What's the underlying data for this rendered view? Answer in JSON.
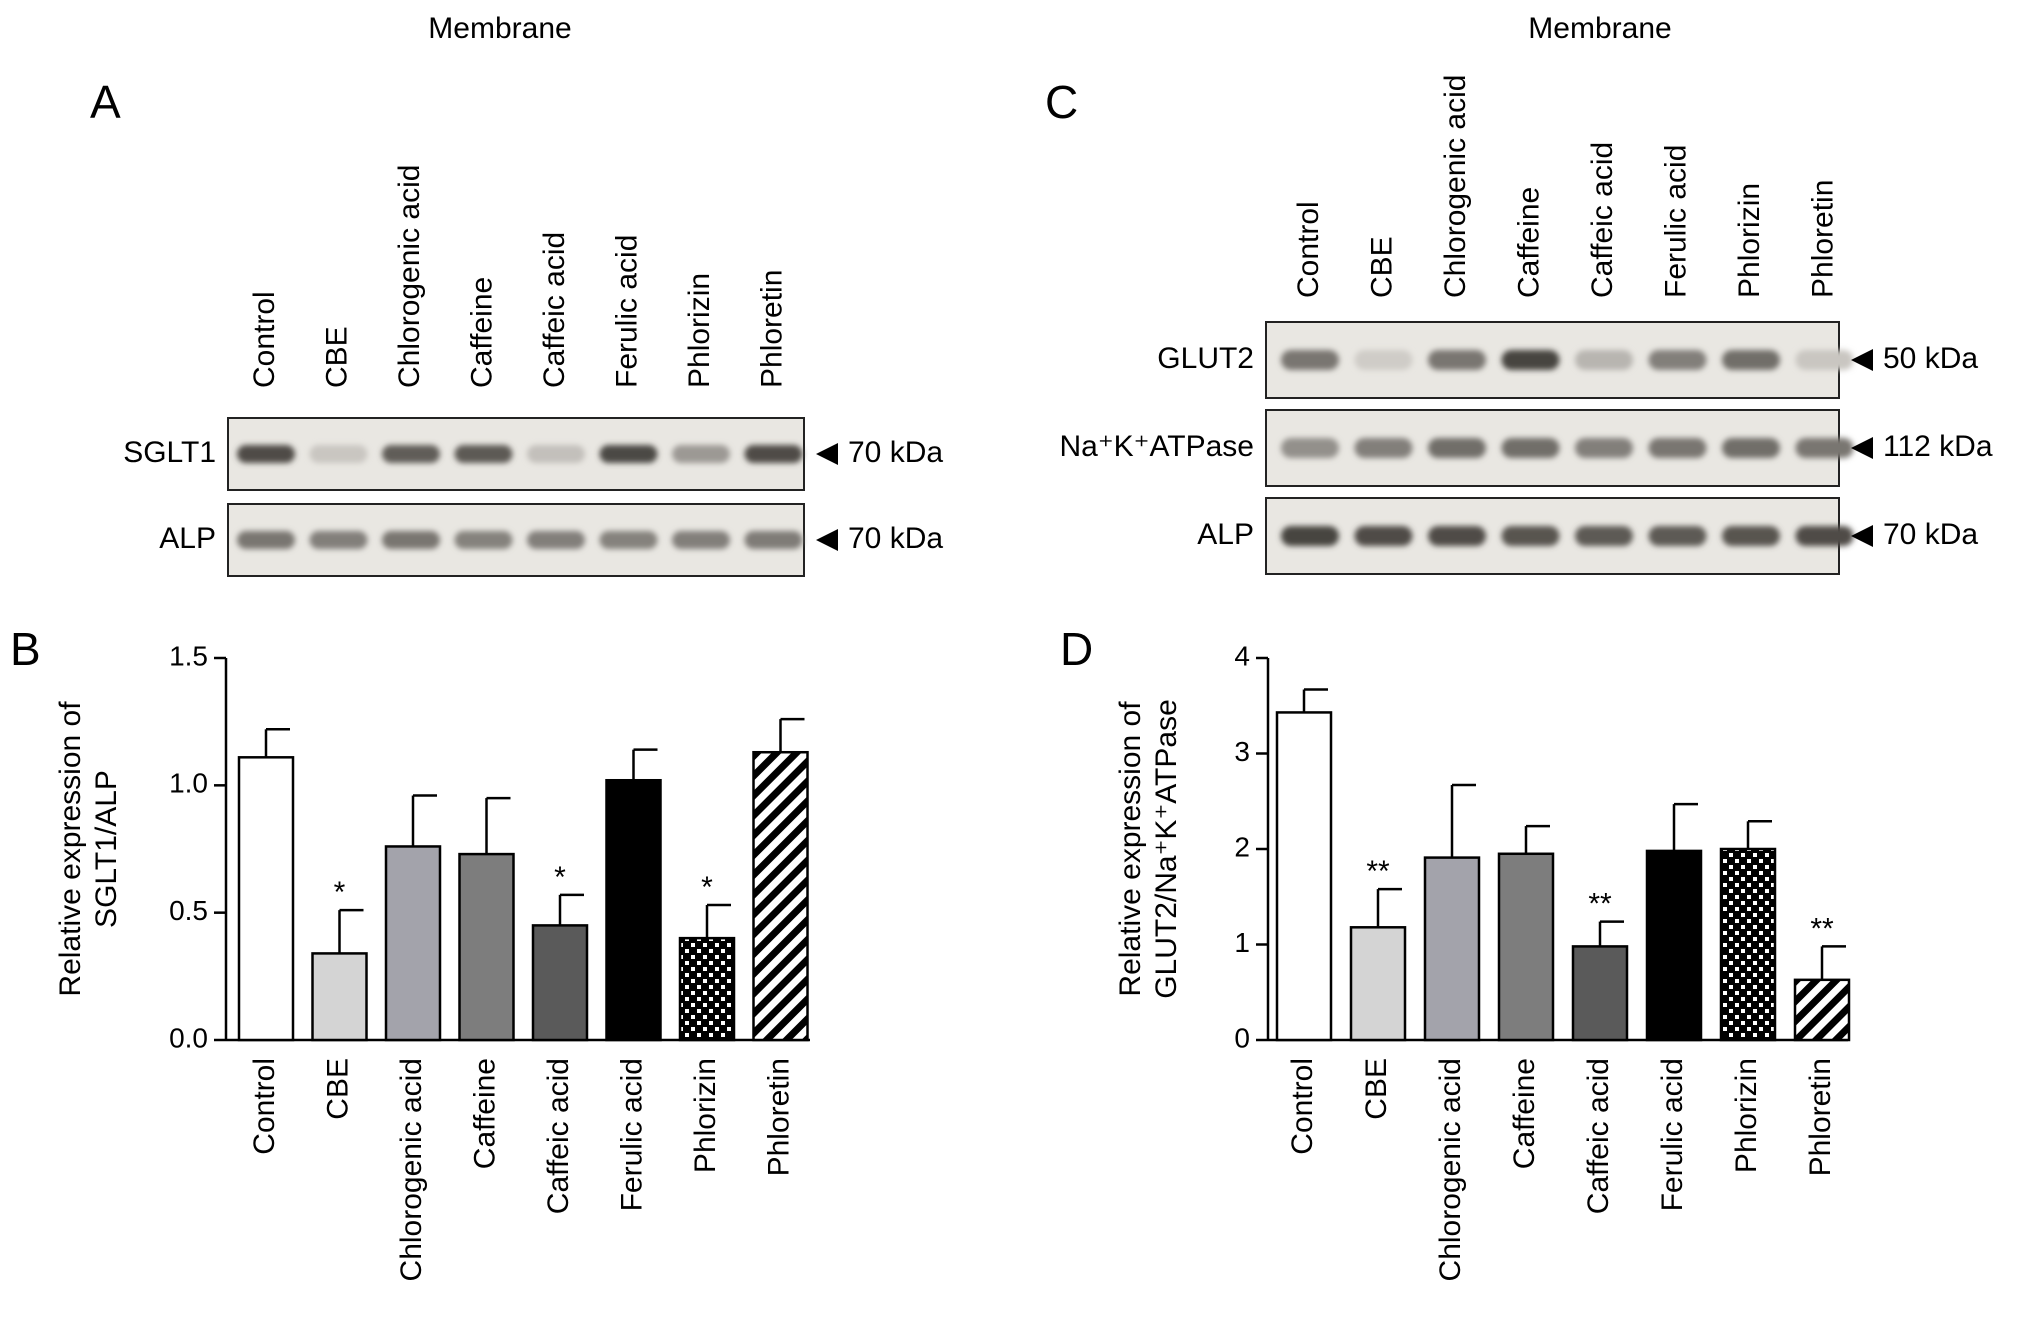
{
  "panel_a": {
    "label": "A",
    "header": "Membrane",
    "lanes": [
      "Control",
      "CBE",
      "Chlorogenic acid",
      "Caffeine",
      "Caffeic acid",
      "Ferulic acid",
      "Phlorizin",
      "Phloretin"
    ],
    "blots": [
      {
        "protein": "SGLT1",
        "size": "70 kDa",
        "intensity": [
          0.8,
          0.08,
          0.7,
          0.72,
          0.12,
          0.82,
          0.35,
          0.8
        ]
      },
      {
        "protein": "ALP",
        "size": "70 kDa",
        "intensity": [
          0.55,
          0.5,
          0.55,
          0.48,
          0.5,
          0.48,
          0.5,
          0.52
        ]
      }
    ]
  },
  "panel_c": {
    "label": "C",
    "header": "Membrane",
    "lanes": [
      "Control",
      "CBE",
      "Chlorogenic acid",
      "Caffeine",
      "Caffeic acid",
      "Ferulic acid",
      "Phlorizin",
      "Phloretin"
    ],
    "blots": [
      {
        "protein": "GLUT2",
        "size": "50 kDa",
        "intensity": [
          0.55,
          0.05,
          0.55,
          0.85,
          0.18,
          0.5,
          0.6,
          0.08
        ]
      },
      {
        "protein": "Na⁺K⁺ATPase",
        "size": "112 kDa",
        "intensity": [
          0.4,
          0.5,
          0.6,
          0.6,
          0.5,
          0.55,
          0.6,
          0.55
        ]
      },
      {
        "protein": "ALP",
        "size": "70 kDa",
        "intensity": [
          0.85,
          0.8,
          0.8,
          0.75,
          0.72,
          0.72,
          0.75,
          0.8
        ]
      }
    ]
  },
  "colors": {
    "Control": "#ffffff",
    "CBE": "#d4d4d4",
    "Chlorogenic acid": "#a3a3ab",
    "Caffeine": "#7d7d7d",
    "Caffeic acid": "#5a5a5a",
    "Ferulic acid": "#000000"
  },
  "chart_data": [
    {
      "panel": "B",
      "type": "bar",
      "categories": [
        "Control",
        "CBE",
        "Chlorogenic acid",
        "Caffeine",
        "Caffeic acid",
        "Ferulic acid",
        "Phlorizin",
        "Phloretin"
      ],
      "values": [
        1.11,
        0.34,
        0.76,
        0.73,
        0.45,
        1.02,
        0.4,
        1.13
      ],
      "errors": [
        0.11,
        0.17,
        0.2,
        0.22,
        0.12,
        0.12,
        0.13,
        0.13
      ],
      "significance": [
        "",
        "*",
        "",
        "",
        "*",
        "",
        "*",
        ""
      ],
      "fills": [
        "white",
        "light-gray",
        "gray",
        "mid-gray",
        "dark-gray",
        "black",
        "crosshatch",
        "diagonal-stripes"
      ],
      "ylabel": [
        "Relative expression of",
        "SGLT1/ALP"
      ],
      "ylim": [
        0,
        1.5
      ],
      "yticks": [
        "0.0",
        "0.5",
        "1.0",
        "1.5"
      ],
      "grid": false
    },
    {
      "panel": "D",
      "type": "bar",
      "categories": [
        "Control",
        "CBE",
        "Chlorogenic acid",
        "Caffeine",
        "Caffeic acid",
        "Ferulic acid",
        "Phlorizin",
        "Phloretin"
      ],
      "values": [
        3.43,
        1.18,
        1.91,
        1.95,
        0.98,
        1.98,
        2.0,
        0.63
      ],
      "errors": [
        0.24,
        0.4,
        0.76,
        0.29,
        0.26,
        0.49,
        0.29,
        0.35
      ],
      "significance": [
        "",
        "**",
        "",
        "",
        "**",
        "",
        "",
        "**"
      ],
      "fills": [
        "white",
        "light-gray",
        "gray",
        "mid-gray",
        "dark-gray",
        "black",
        "crosshatch",
        "diagonal-stripes"
      ],
      "ylabel": [
        "Relative expression of",
        "GLUT2/Na⁺K⁺ATPase"
      ],
      "ylim": [
        0,
        4
      ],
      "yticks": [
        "0",
        "1",
        "2",
        "3",
        "4"
      ],
      "grid": false
    }
  ]
}
